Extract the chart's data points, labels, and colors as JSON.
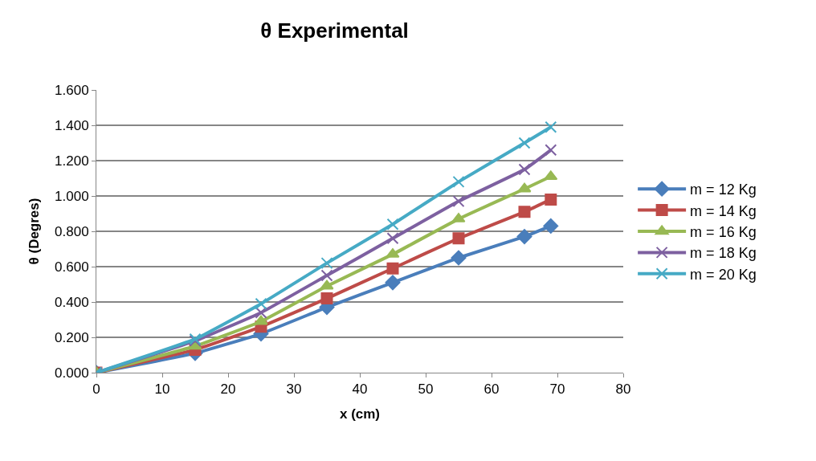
{
  "chart_data": {
    "type": "line",
    "title": "θ Experimental",
    "xlabel": "x (cm)",
    "ylabel": "θ (Degres)",
    "x": [
      0,
      15,
      25,
      35,
      45,
      55,
      65,
      69
    ],
    "series": [
      {
        "name": "m = 12 Kg",
        "color": "#4a7ebb",
        "marker": "diamond",
        "values": [
          0,
          0.11,
          0.22,
          0.37,
          0.51,
          0.65,
          0.77,
          0.83
        ]
      },
      {
        "name": "m = 14 Kg",
        "color": "#be4b48",
        "marker": "square",
        "values": [
          0,
          0.13,
          0.26,
          0.42,
          0.59,
          0.76,
          0.91,
          0.98
        ]
      },
      {
        "name": "m = 16 Kg",
        "color": "#98b954",
        "marker": "triangle",
        "values": [
          0,
          0.15,
          0.29,
          0.49,
          0.67,
          0.87,
          1.04,
          1.11
        ]
      },
      {
        "name": "m = 18 Kg",
        "color": "#7d60a0",
        "marker": "cross",
        "values": [
          0,
          0.18,
          0.34,
          0.55,
          0.76,
          0.97,
          1.15,
          1.26
        ]
      },
      {
        "name": "m = 20 Kg",
        "color": "#46aac5",
        "marker": "cross",
        "values": [
          0,
          0.19,
          0.39,
          0.62,
          0.84,
          1.08,
          1.3,
          1.39
        ]
      }
    ],
    "xlim": [
      0,
      80
    ],
    "xticks": [
      0,
      10,
      20,
      30,
      40,
      50,
      60,
      70,
      80
    ],
    "ylim": [
      0,
      1.6
    ],
    "yticks": [
      {
        "value": 0,
        "label": "0.000"
      },
      {
        "value": 0.2,
        "label": "0.200"
      },
      {
        "value": 0.4,
        "label": "0.400"
      },
      {
        "value": 0.6,
        "label": "0.600"
      },
      {
        "value": 0.8,
        "label": "0.800"
      },
      {
        "value": 1.0,
        "label": "1.000"
      },
      {
        "value": 1.2,
        "label": "1.200"
      },
      {
        "value": 1.4,
        "label": "1.400"
      },
      {
        "value": 1.6,
        "label": "1.600"
      }
    ],
    "grid": "y",
    "legend": "right",
    "line_style": "solid"
  }
}
